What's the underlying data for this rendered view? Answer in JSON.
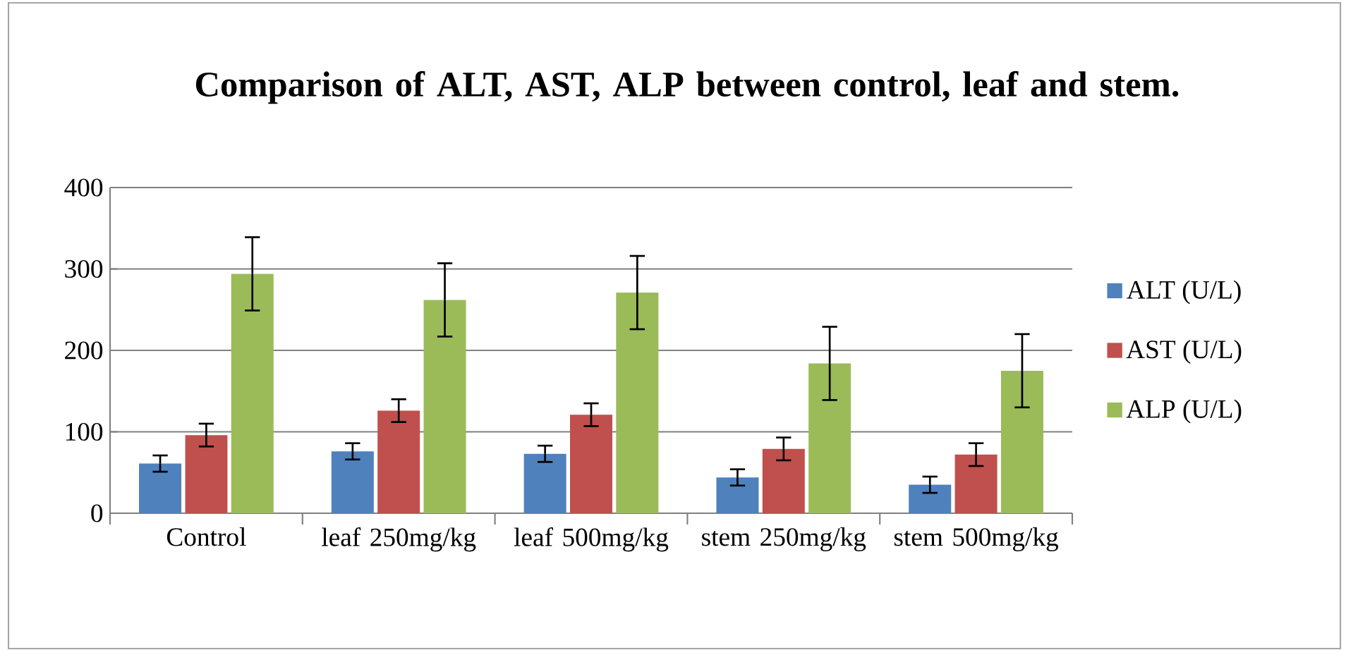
{
  "chart_data": {
    "type": "bar",
    "title": "Comparison of ALT, AST, ALP between control, leaf and stem.",
    "categories": [
      "Control",
      "leaf 250mg/kg",
      "leaf 500mg/kg",
      "stem 250mg/kg",
      "stem 500mg/kg"
    ],
    "series": [
      {
        "name": "ALT (U/L)",
        "color": "#4f81bd",
        "values": [
          61,
          76,
          73,
          44,
          35
        ],
        "errors": [
          10,
          10,
          10,
          10,
          10
        ]
      },
      {
        "name": "AST (U/L)",
        "color": "#c0504d",
        "values": [
          96,
          126,
          121,
          79,
          72
        ],
        "errors": [
          14,
          14,
          14,
          14,
          14
        ]
      },
      {
        "name": "ALP (U/L)",
        "color": "#9bbb59",
        "values": [
          294,
          262,
          271,
          184,
          175
        ],
        "errors": [
          45,
          45,
          45,
          45,
          45
        ]
      }
    ],
    "ylim": [
      0,
      400
    ],
    "yticks": [
      0,
      100,
      200,
      300,
      400
    ],
    "grid": "y",
    "legend": "right"
  }
}
